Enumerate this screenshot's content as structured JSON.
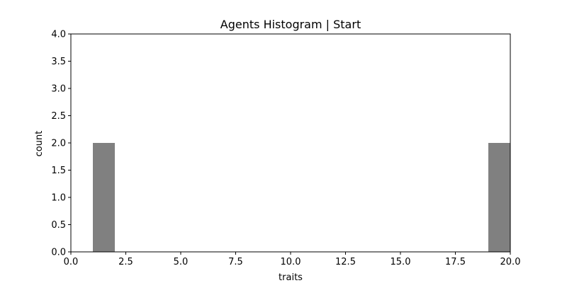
{
  "chart_data": {
    "type": "bar",
    "title": "Agents Histogram | Start",
    "xlabel": "traits",
    "ylabel": "count",
    "xlim": [
      0,
      20
    ],
    "ylim": [
      0,
      4
    ],
    "xticks": [
      "0.0",
      "2.5",
      "5.0",
      "7.5",
      "10.0",
      "12.5",
      "15.0",
      "17.5",
      "20.0"
    ],
    "yticks": [
      "0.0",
      "0.5",
      "1.0",
      "1.5",
      "2.0",
      "2.5",
      "3.0",
      "3.5",
      "4.0"
    ],
    "grid": false,
    "bar_color": "#808080",
    "bins": [
      {
        "x0": 1,
        "x1": 2,
        "value": 2
      },
      {
        "x0": 19,
        "x1": 20,
        "value": 2
      }
    ]
  }
}
